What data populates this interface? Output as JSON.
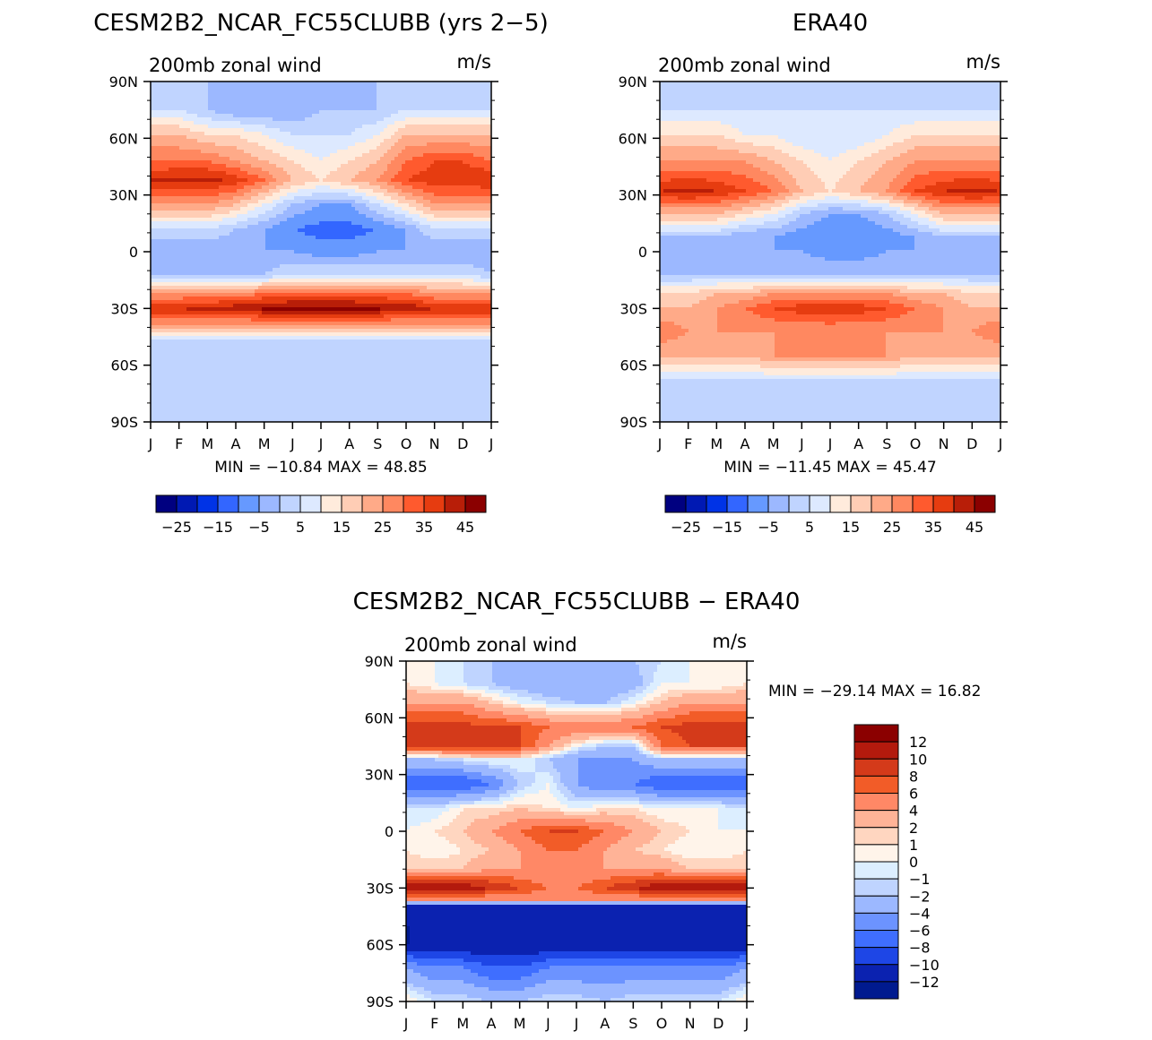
{
  "chart_data": [
    {
      "type": "heatmap",
      "title": "CESM2B2_NCAR_FC55CLUBB (yrs 2−5)",
      "subtitle": "200mb zonal wind",
      "units": "m/s",
      "x_ticks": [
        "J",
        "F",
        "M",
        "A",
        "M",
        "J",
        "J",
        "A",
        "S",
        "O",
        "N",
        "D",
        "J"
      ],
      "y_ticks": [
        "90N",
        "60N",
        "30N",
        "0",
        "30S",
        "60S",
        "90S"
      ],
      "min_text": "MIN = −10.84 MAX =   48.85",
      "colorbar_labels": [
        "−25",
        "−15",
        "−5",
        "5",
        "15",
        "25",
        "35",
        "45"
      ],
      "bands": [
        {
          "lat": 90,
          "values": [
            0,
            0,
            0,
            0,
            0,
            -5,
            -5,
            -5,
            0,
            0,
            0,
            0,
            0
          ]
        },
        {
          "lat": 75,
          "values": [
            5,
            5,
            0,
            -5,
            -5,
            -5,
            0,
            0,
            0,
            5,
            5,
            5,
            5
          ]
        },
        {
          "lat": 62,
          "values": [
            20,
            20,
            15,
            15,
            10,
            5,
            5,
            5,
            10,
            20,
            20,
            20,
            20
          ]
        },
        {
          "lat": 48,
          "values": [
            30,
            30,
            30,
            25,
            20,
            15,
            10,
            15,
            20,
            30,
            35,
            35,
            30
          ]
        },
        {
          "lat": 38,
          "values": [
            40,
            42,
            42,
            38,
            30,
            20,
            15,
            20,
            25,
            35,
            38,
            38,
            40
          ]
        },
        {
          "lat": 25,
          "values": [
            25,
            25,
            25,
            20,
            10,
            0,
            -5,
            -5,
            5,
            15,
            25,
            25,
            25
          ]
        },
        {
          "lat": 12,
          "values": [
            5,
            5,
            5,
            0,
            -5,
            -10,
            -12,
            -12,
            -10,
            -5,
            5,
            5,
            5
          ]
        },
        {
          "lat": 0,
          "values": [
            -5,
            -5,
            -5,
            -5,
            -5,
            -5,
            -8,
            -8,
            -5,
            -5,
            -5,
            -5,
            -5
          ]
        },
        {
          "lat": -12,
          "values": [
            0,
            0,
            -3,
            -3,
            0,
            5,
            5,
            5,
            5,
            5,
            5,
            5,
            0
          ]
        },
        {
          "lat": -22,
          "values": [
            25,
            25,
            25,
            25,
            30,
            30,
            30,
            30,
            30,
            30,
            25,
            25,
            25
          ]
        },
        {
          "lat": -30,
          "values": [
            40,
            40,
            42,
            44,
            46,
            48,
            48,
            48,
            46,
            44,
            40,
            40,
            40
          ]
        },
        {
          "lat": -38,
          "values": [
            25,
            25,
            25,
            25,
            25,
            25,
            25,
            25,
            25,
            25,
            25,
            25,
            25
          ]
        },
        {
          "lat": -48,
          "values": [
            0,
            0,
            0,
            0,
            0,
            0,
            0,
            0,
            0,
            0,
            0,
            0,
            0
          ]
        },
        {
          "lat": -65,
          "values": [
            0,
            0,
            5,
            5,
            5,
            5,
            5,
            5,
            5,
            5,
            5,
            5,
            0
          ]
        },
        {
          "lat": -90,
          "values": [
            0,
            0,
            0,
            0,
            0,
            0,
            0,
            0,
            0,
            0,
            0,
            0,
            0
          ]
        }
      ]
    },
    {
      "type": "heatmap",
      "title": "ERA40",
      "subtitle": "200mb zonal wind",
      "units": "m/s",
      "x_ticks": [
        "J",
        "F",
        "M",
        "A",
        "M",
        "J",
        "J",
        "A",
        "S",
        "O",
        "N",
        "D",
        "J"
      ],
      "y_ticks": [
        "90N",
        "60N",
        "30N",
        "0",
        "30S",
        "60S",
        "90S"
      ],
      "min_text": "MIN = −11.45 MAX =   45.47",
      "colorbar_labels": [
        "−25",
        "−15",
        "−5",
        "5",
        "15",
        "25",
        "35",
        "45"
      ],
      "bands": [
        {
          "lat": 90,
          "values": [
            0,
            0,
            0,
            0,
            0,
            0,
            0,
            0,
            0,
            0,
            0,
            0,
            0
          ]
        },
        {
          "lat": 75,
          "values": [
            5,
            5,
            5,
            5,
            5,
            5,
            5,
            5,
            5,
            5,
            5,
            5,
            5
          ]
        },
        {
          "lat": 62,
          "values": [
            15,
            15,
            15,
            10,
            10,
            5,
            5,
            5,
            10,
            15,
            15,
            15,
            15
          ]
        },
        {
          "lat": 48,
          "values": [
            25,
            25,
            25,
            25,
            20,
            15,
            10,
            15,
            20,
            25,
            25,
            25,
            25
          ]
        },
        {
          "lat": 32,
          "values": [
            40,
            42,
            40,
            35,
            30,
            20,
            15,
            20,
            25,
            35,
            40,
            42,
            40
          ]
        },
        {
          "lat": 20,
          "values": [
            20,
            20,
            20,
            15,
            10,
            0,
            -5,
            -5,
            0,
            10,
            20,
            20,
            20
          ]
        },
        {
          "lat": 8,
          "values": [
            0,
            0,
            0,
            -5,
            -5,
            -8,
            -10,
            -10,
            -8,
            -5,
            0,
            0,
            0
          ]
        },
        {
          "lat": 0,
          "values": [
            -5,
            -5,
            -5,
            -5,
            -5,
            -5,
            -8,
            -8,
            -5,
            -5,
            -5,
            -5,
            -5
          ]
        },
        {
          "lat": -12,
          "values": [
            0,
            0,
            0,
            0,
            0,
            0,
            0,
            0,
            0,
            0,
            0,
            0,
            0
          ]
        },
        {
          "lat": -22,
          "values": [
            15,
            15,
            20,
            20,
            25,
            25,
            25,
            25,
            25,
            20,
            20,
            15,
            15
          ]
        },
        {
          "lat": -30,
          "values": [
            20,
            20,
            25,
            30,
            35,
            38,
            40,
            38,
            35,
            30,
            25,
            20,
            20
          ]
        },
        {
          "lat": -42,
          "values": [
            30,
            25,
            25,
            25,
            25,
            25,
            25,
            25,
            25,
            25,
            25,
            25,
            30
          ]
        },
        {
          "lat": -55,
          "values": [
            20,
            20,
            20,
            20,
            25,
            25,
            25,
            25,
            25,
            20,
            20,
            20,
            20
          ]
        },
        {
          "lat": -68,
          "values": [
            5,
            5,
            5,
            5,
            5,
            5,
            5,
            5,
            5,
            5,
            5,
            5,
            5
          ]
        },
        {
          "lat": -90,
          "values": [
            0,
            0,
            0,
            0,
            0,
            0,
            0,
            0,
            0,
            0,
            0,
            0,
            0
          ]
        }
      ]
    },
    {
      "type": "heatmap",
      "title": "CESM2B2_NCAR_FC55CLUBB − ERA40",
      "subtitle": "200mb zonal wind",
      "units": "m/s",
      "x_ticks": [
        "J",
        "F",
        "M",
        "A",
        "M",
        "J",
        "J",
        "A",
        "S",
        "O",
        "N",
        "D",
        "J"
      ],
      "y_ticks": [
        "90N",
        "60N",
        "30N",
        "0",
        "30S",
        "60S",
        "90S"
      ],
      "min_text": "MIN = −29.14 MAX =   16.82",
      "colorbar_labels": [
        "12",
        "10",
        "8",
        "6",
        "4",
        "2",
        "1",
        "0",
        "−1",
        "−2",
        "−4",
        "−6",
        "−8",
        "−10",
        "−12"
      ],
      "bands": [
        {
          "lat": 90,
          "values": [
            0,
            0,
            -1,
            -2,
            -2,
            -2,
            -3,
            -3,
            -2,
            -1,
            0,
            0,
            0
          ]
        },
        {
          "lat": 78,
          "values": [
            1,
            0,
            -1,
            -2,
            -3,
            -4,
            -4,
            -4,
            -3,
            0,
            0,
            0,
            1
          ]
        },
        {
          "lat": 68,
          "values": [
            4,
            4,
            4,
            2,
            0,
            -1,
            -2,
            -2,
            0,
            2,
            4,
            4,
            4
          ]
        },
        {
          "lat": 55,
          "values": [
            9,
            9,
            9,
            8,
            8,
            6,
            6,
            6,
            6,
            8,
            9,
            9,
            9
          ]
        },
        {
          "lat": 45,
          "values": [
            8,
            9,
            10,
            10,
            8,
            4,
            0,
            -2,
            -2,
            6,
            8,
            8,
            8
          ]
        },
        {
          "lat": 38,
          "values": [
            -2,
            -2,
            -1,
            0,
            0,
            -2,
            -4,
            -4,
            -4,
            -2,
            -2,
            -2,
            -2
          ]
        },
        {
          "lat": 25,
          "values": [
            -8,
            -8,
            -8,
            -6,
            -2,
            0,
            -4,
            -6,
            -6,
            -8,
            -8,
            -8,
            -8
          ]
        },
        {
          "lat": 12,
          "values": [
            -1,
            -1,
            1,
            1,
            2,
            1,
            0,
            1,
            1,
            0,
            0,
            0,
            -1
          ]
        },
        {
          "lat": 0,
          "values": [
            0,
            1,
            2,
            4,
            6,
            8,
            8,
            6,
            4,
            2,
            1,
            0,
            0
          ]
        },
        {
          "lat": -10,
          "values": [
            1,
            0,
            1,
            2,
            4,
            6,
            6,
            4,
            2,
            1,
            0,
            0,
            1
          ]
        },
        {
          "lat": -20,
          "values": [
            2,
            2,
            2,
            4,
            4,
            4,
            4,
            4,
            4,
            4,
            2,
            2,
            2
          ]
        },
        {
          "lat": -30,
          "values": [
            12,
            12,
            12,
            10,
            8,
            6,
            6,
            8,
            10,
            12,
            12,
            12,
            12
          ]
        },
        {
          "lat": -36,
          "values": [
            4,
            4,
            4,
            4,
            4,
            4,
            4,
            4,
            4,
            4,
            4,
            4,
            4
          ]
        },
        {
          "lat": -40,
          "values": [
            -12,
            -12,
            -12,
            -12,
            -12,
            -12,
            -12,
            -12,
            -12,
            -12,
            -12,
            -12,
            -12
          ]
        },
        {
          "lat": -60,
          "values": [
            -12,
            -12,
            -12,
            -12,
            -12,
            -12,
            -12,
            -12,
            -12,
            -12,
            -12,
            -12,
            -12
          ]
        },
        {
          "lat": -72,
          "values": [
            -4,
            -6,
            -6,
            -8,
            -8,
            -6,
            -6,
            -6,
            -6,
            -6,
            -6,
            -6,
            -4
          ]
        },
        {
          "lat": -90,
          "values": [
            1,
            -1,
            -1,
            -2,
            -2,
            -1,
            -1,
            -2,
            -1,
            -1,
            -1,
            -1,
            1
          ]
        }
      ]
    }
  ],
  "palettes": {
    "full": [
      "#000080",
      "#0019b3",
      "#0033e6",
      "#3366ff",
      "#6699ff",
      "#9cb8ff",
      "#c0d4ff",
      "#dde9ff",
      "#ffebdc",
      "#ffcdb5",
      "#ffaa88",
      "#ff8860",
      "#ff5a2e",
      "#e63c10",
      "#b81e08",
      "#8b0000"
    ],
    "diff": [
      "#8b0000",
      "#b31a0d",
      "#d43a1a",
      "#f25c28",
      "#ff8866",
      "#ffb397",
      "#ffd6c0",
      "#fff4ea",
      "#dceeff",
      "#bfd4ff",
      "#9cb8ff",
      "#6c93ff",
      "#3f6eff",
      "#1e46e6",
      "#0b22b0",
      "#001a8f"
    ]
  }
}
